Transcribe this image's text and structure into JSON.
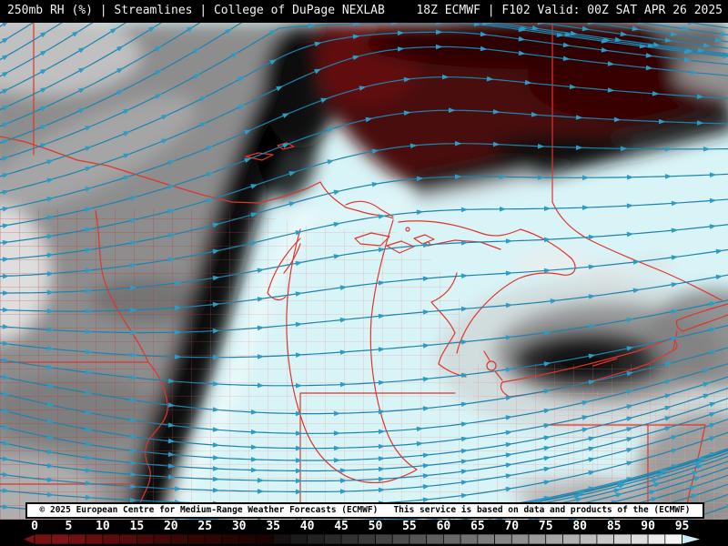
{
  "header": {
    "left": "250mb RH (%) | Streamlines | College of DuPage NEXLAB",
    "right": "18Z ECMWF | F102 Valid: 00Z SAT APR 26 2025"
  },
  "footer": {
    "copyright": "© 2025 European Centre for Medium-Range Weather Forecasts (ECMWF)   This service is based on data and products of the (ECMWF)"
  },
  "colorbar": {
    "quantity": "250mb relative humidity",
    "unit": "%",
    "ticks": [
      "0",
      "5",
      "10",
      "15",
      "20",
      "25",
      "30",
      "35",
      "40",
      "45",
      "50",
      "55",
      "60",
      "65",
      "70",
      "75",
      "80",
      "85",
      "90",
      "95"
    ],
    "segment_colors": [
      "#771111",
      "#7d1414",
      "#701010",
      "#660e0e",
      "#5c0c0c",
      "#530b0b",
      "#4a0909",
      "#420808",
      "#3a0707",
      "#330606",
      "#2c0505",
      "#260404",
      "#200404",
      "#1b0303",
      "#171010",
      "#1b1b1b",
      "#222222",
      "#2a2a2a",
      "#323232",
      "#3a3a3a",
      "#434343",
      "#4c4c4c",
      "#555555",
      "#5e5e5e",
      "#686868",
      "#727272",
      "#7c7c7c",
      "#868686",
      "#909090",
      "#9b9b9b",
      "#a6a6a6",
      "#b1b1b1",
      "#bcbcbc",
      "#c7c7c7",
      "#d2d2d2",
      "#dddddd",
      "#e9e9e9",
      "#f4f4f4"
    ],
    "under_range_arrow_color": "#7c1212",
    "over_range_arrow_color": "#cdecf2"
  },
  "map": {
    "colors": {
      "moist_cyan": "#d9f4f7",
      "dry_dark_red": "#4a0909",
      "boundary_red": "#e03529",
      "county_red": "#c62f28",
      "county_pink": "#e2776c",
      "county_light_pink": "#eda198"
    },
    "streamlines": {
      "color": "#1d83ad",
      "arrow_color": "#2d9cc4",
      "width": 1.2,
      "left_seed_start": 34,
      "left_seed_step": 18,
      "bottom_seed_start": 350,
      "bottom_seed_step": 44,
      "top_seed_start": 470,
      "top_seed_step": 55,
      "arrow_spacing": 46
    }
  }
}
